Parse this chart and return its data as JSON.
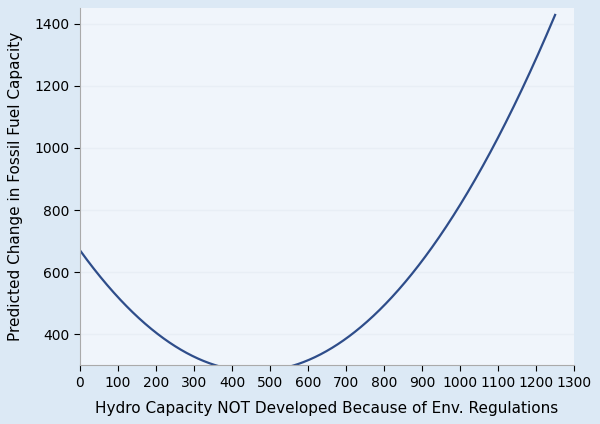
{
  "xlabel": "Hydro Capacity NOT Developed Because of Env. Regulations",
  "ylabel": "Predicted Change in Fossil Fuel Capacity",
  "background_color": "#dce9f5",
  "plot_background_color": "#f0f5fb",
  "line_color": "#2e4d8a",
  "line_width": 1.6,
  "xlim": [
    0,
    1300
  ],
  "ylim": [
    300,
    1450
  ],
  "xticks": [
    0,
    100,
    200,
    300,
    400,
    500,
    600,
    700,
    800,
    900,
    1000,
    1100,
    1200,
    1300
  ],
  "yticks": [
    400,
    600,
    800,
    1000,
    1200,
    1400
  ],
  "x_start": 0,
  "x_end": 1250,
  "poly_a": 0.001842,
  "poly_b": -1.6955,
  "poly_c": 670,
  "xlabel_fontsize": 11,
  "ylabel_fontsize": 11,
  "tick_fontsize": 10,
  "grid_color": "#e8eef5",
  "grid_linewidth": 1.0
}
